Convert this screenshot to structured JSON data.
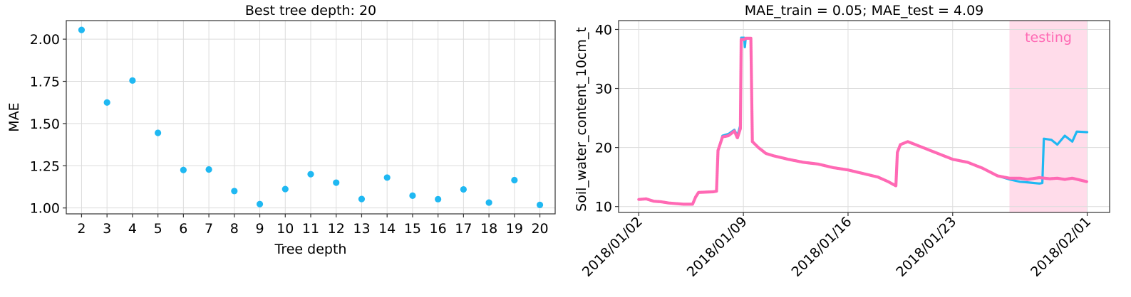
{
  "colors": {
    "blue": "#1fb8f2",
    "pink": "#ff69b4",
    "testing_band": "#ffdcea"
  },
  "chart_data": [
    {
      "type": "scatter",
      "title": "Best tree depth: 20",
      "xlabel": "Tree depth",
      "ylabel": "MAE",
      "x": [
        2,
        3,
        4,
        5,
        6,
        7,
        8,
        9,
        10,
        11,
        12,
        13,
        14,
        15,
        16,
        17,
        18,
        19,
        20
      ],
      "y": [
        2.055,
        1.625,
        1.755,
        1.445,
        1.225,
        1.228,
        1.1,
        1.023,
        1.112,
        1.2,
        1.15,
        1.053,
        1.18,
        1.073,
        1.052,
        1.11,
        1.032,
        1.165,
        1.018
      ],
      "xticks": [
        "2",
        "3",
        "4",
        "5",
        "6",
        "7",
        "8",
        "9",
        "10",
        "11",
        "12",
        "13",
        "14",
        "15",
        "16",
        "17",
        "18",
        "19",
        "20"
      ],
      "yticks": [
        "1.00",
        "1.25",
        "1.50",
        "1.75",
        "2.00"
      ],
      "xlim": [
        1.4,
        20.6
      ],
      "ylim": [
        0.965,
        2.11
      ],
      "grid": true
    },
    {
      "type": "line",
      "title": "MAE_train = 0.05; MAE_test = 4.09",
      "xlabel": "",
      "ylabel": "Soil_water_content_10cm_t",
      "xticks": [
        "2018/01/02",
        "2018/01/09",
        "2018/01/16",
        "2018/01/23",
        "2018/02/01"
      ],
      "xtick_days": [
        0,
        7,
        14,
        21,
        30
      ],
      "yticks": [
        "10",
        "20",
        "30",
        "40"
      ],
      "ylim": [
        9.0,
        41.5
      ],
      "xlim_days": [
        -1.35,
        31.5
      ],
      "testing_region": {
        "label": "testing",
        "start_day": 24.8,
        "end_day": 30
      },
      "grid": true,
      "series": [
        {
          "color": "blue",
          "points": [
            [
              0,
              11.2
            ],
            [
              0.5,
              11.3
            ],
            [
              1,
              10.9
            ],
            [
              1.5,
              10.8
            ],
            [
              2,
              10.6
            ],
            [
              3,
              10.4
            ],
            [
              3.6,
              10.4
            ],
            [
              3.8,
              11.6
            ],
            [
              4,
              12.4
            ],
            [
              5,
              12.5
            ],
            [
              5.2,
              12.6
            ],
            [
              5.3,
              19.5
            ],
            [
              5.6,
              22
            ],
            [
              6,
              22.3
            ],
            [
              6.4,
              23
            ],
            [
              6.6,
              22
            ],
            [
              6.8,
              23.8
            ],
            [
              6.85,
              38.6
            ],
            [
              7.05,
              38.6
            ],
            [
              7.1,
              37
            ],
            [
              7.15,
              38.5
            ],
            [
              7.5,
              38.5
            ],
            [
              7.6,
              21
            ],
            [
              8,
              20
            ],
            [
              8.5,
              19
            ],
            [
              9,
              18.6
            ],
            [
              10,
              18
            ],
            [
              11,
              17.5
            ],
            [
              12,
              17.2
            ],
            [
              13,
              16.6
            ],
            [
              14,
              16.2
            ],
            [
              15,
              15.6
            ],
            [
              16,
              15
            ],
            [
              16.7,
              14.2
            ],
            [
              17.2,
              13.5
            ],
            [
              17.3,
              19.2
            ],
            [
              17.5,
              20.5
            ],
            [
              18,
              21
            ],
            [
              19,
              20
            ],
            [
              20,
              19
            ],
            [
              21,
              18
            ],
            [
              22,
              17.5
            ],
            [
              23,
              16.5
            ],
            [
              24,
              15.2
            ],
            [
              24.8,
              14.6
            ],
            [
              25.5,
              14.2
            ],
            [
              26,
              14.1
            ],
            [
              26.8,
              13.9
            ],
            [
              27,
              14
            ],
            [
              27.1,
              21.5
            ],
            [
              27.6,
              21.3
            ],
            [
              28,
              20.5
            ],
            [
              28.5,
              22
            ],
            [
              29,
              21
            ],
            [
              29.3,
              22.7
            ],
            [
              30,
              22.6
            ]
          ]
        },
        {
          "color": "pink",
          "points": [
            [
              0,
              11.2
            ],
            [
              0.5,
              11.3
            ],
            [
              1,
              10.9
            ],
            [
              1.5,
              10.8
            ],
            [
              2,
              10.6
            ],
            [
              3,
              10.4
            ],
            [
              3.6,
              10.4
            ],
            [
              3.8,
              11.6
            ],
            [
              4,
              12.4
            ],
            [
              5,
              12.5
            ],
            [
              5.2,
              12.6
            ],
            [
              5.3,
              19.5
            ],
            [
              5.6,
              21.8
            ],
            [
              6,
              22
            ],
            [
              6.4,
              22.8
            ],
            [
              6.6,
              21.6
            ],
            [
              6.8,
              23.2
            ],
            [
              6.85,
              38.3
            ],
            [
              7.05,
              38.3
            ],
            [
              7.15,
              38.5
            ],
            [
              7.5,
              38.5
            ],
            [
              7.6,
              21
            ],
            [
              8,
              20
            ],
            [
              8.5,
              19
            ],
            [
              9,
              18.6
            ],
            [
              10,
              18
            ],
            [
              11,
              17.5
            ],
            [
              12,
              17.2
            ],
            [
              13,
              16.6
            ],
            [
              14,
              16.2
            ],
            [
              15,
              15.6
            ],
            [
              16,
              15
            ],
            [
              16.7,
              14.2
            ],
            [
              17.2,
              13.5
            ],
            [
              17.3,
              19.2
            ],
            [
              17.5,
              20.5
            ],
            [
              18,
              21
            ],
            [
              19,
              20
            ],
            [
              20,
              19
            ],
            [
              21,
              18
            ],
            [
              22,
              17.5
            ],
            [
              23,
              16.5
            ],
            [
              24,
              15.2
            ],
            [
              24.8,
              14.8
            ],
            [
              25.5,
              14.8
            ],
            [
              26,
              14.6
            ],
            [
              26.8,
              14.9
            ],
            [
              27.5,
              14.7
            ],
            [
              28,
              14.8
            ],
            [
              28.5,
              14.6
            ],
            [
              29,
              14.8
            ],
            [
              29.5,
              14.5
            ],
            [
              30,
              14.2
            ]
          ]
        }
      ]
    }
  ]
}
